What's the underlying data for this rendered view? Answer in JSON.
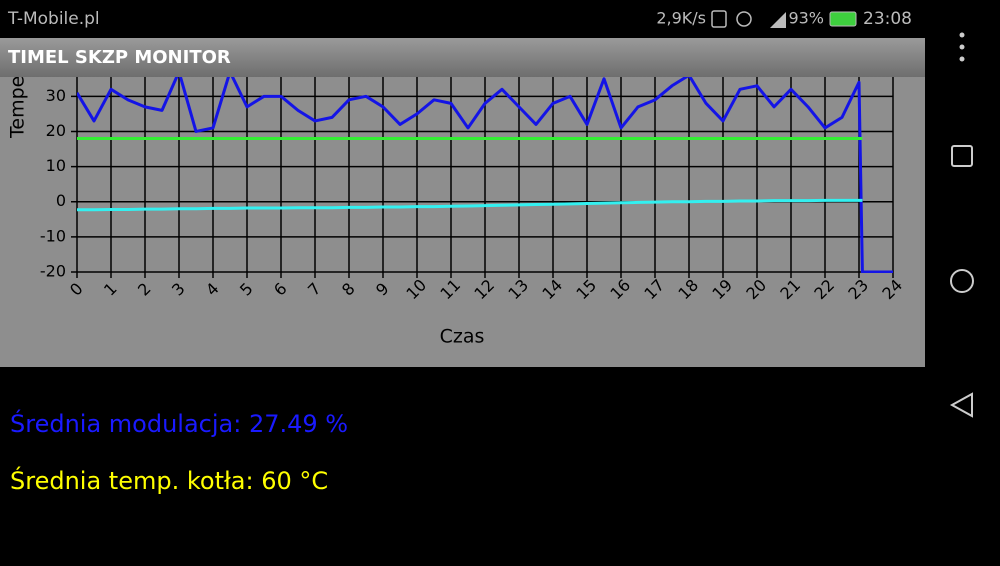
{
  "status_bar": {
    "carrier": "T-Mobile.pl",
    "speed": "2,9K/s",
    "battery": "93%",
    "time": "23:08"
  },
  "app_bar": {
    "title": "TIMEL SKZP MONITOR"
  },
  "chart_data": {
    "type": "line",
    "x_label": "Czas",
    "y_label": "Tempe",
    "x": [
      0,
      0.5,
      1,
      1.5,
      2,
      2.5,
      3,
      3.5,
      4,
      4.5,
      5,
      5.5,
      6,
      6.5,
      7,
      7.5,
      8,
      8.5,
      9,
      9.5,
      10,
      10.5,
      11,
      11.5,
      12,
      12.5,
      13,
      13.5,
      14,
      14.5,
      15,
      15.5,
      16,
      16.5,
      17,
      17.5,
      18,
      18.5,
      19,
      19.5,
      20,
      20.5,
      21,
      21.5,
      22,
      22.5,
      23,
      23.1,
      24
    ],
    "series": [
      {
        "color": "#1414e6",
        "values": [
          31,
          23,
          32,
          29,
          27,
          26,
          37,
          20,
          21,
          37,
          27,
          30,
          30,
          26,
          23,
          24,
          29,
          30,
          27,
          22,
          25,
          29,
          28,
          21,
          28,
          32,
          27,
          22,
          28,
          30,
          22,
          35,
          21,
          27,
          29,
          33,
          36,
          28,
          23,
          32,
          33,
          27,
          32,
          27,
          21,
          24,
          34,
          -20,
          -20
        ]
      },
      {
        "color": "#33ee33",
        "values": [
          18,
          18,
          18,
          18,
          18,
          18,
          18,
          18,
          18,
          18,
          18,
          18,
          18,
          18,
          18,
          18,
          18,
          18,
          18,
          18,
          18,
          18,
          18,
          18,
          18,
          18,
          18,
          18,
          18,
          18,
          18,
          18,
          18,
          18,
          18,
          18,
          18,
          18,
          18,
          18,
          18,
          18,
          18,
          18,
          18,
          18,
          18,
          18,
          null
        ]
      },
      {
        "color": "#33f0f0",
        "values": [
          -2.3,
          -2.3,
          -2.2,
          -2.2,
          -2.1,
          -2.1,
          -2.0,
          -2.0,
          -1.9,
          -1.9,
          -1.8,
          -1.8,
          -1.8,
          -1.7,
          -1.7,
          -1.7,
          -1.6,
          -1.6,
          -1.5,
          -1.5,
          -1.4,
          -1.4,
          -1.3,
          -1.2,
          -1.1,
          -1.0,
          -0.9,
          -0.8,
          -0.7,
          -0.6,
          -0.5,
          -0.4,
          -0.3,
          -0.2,
          -0.1,
          0,
          0,
          0.1,
          0.1,
          0.2,
          0.2,
          0.3,
          0.3,
          0.3,
          0.4,
          0.4,
          0.4,
          0.4,
          null
        ]
      }
    ],
    "xlim": [
      0,
      24
    ],
    "xticks": [
      0,
      1,
      2,
      3,
      4,
      5,
      6,
      7,
      8,
      9,
      10,
      11,
      12,
      13,
      14,
      15,
      16,
      17,
      18,
      19,
      20,
      21,
      22,
      23,
      24
    ],
    "ylim": [
      -20,
      35.5
    ],
    "yticks": [
      -20,
      -10,
      0,
      10,
      20,
      30
    ],
    "grid": true
  },
  "stats": [
    {
      "text": "Średnia modulacja: 27.49 %",
      "color": "#1a1aff"
    },
    {
      "text": "Średnia temp. kotła: 60 °C",
      "color": "#ffff00"
    }
  ]
}
